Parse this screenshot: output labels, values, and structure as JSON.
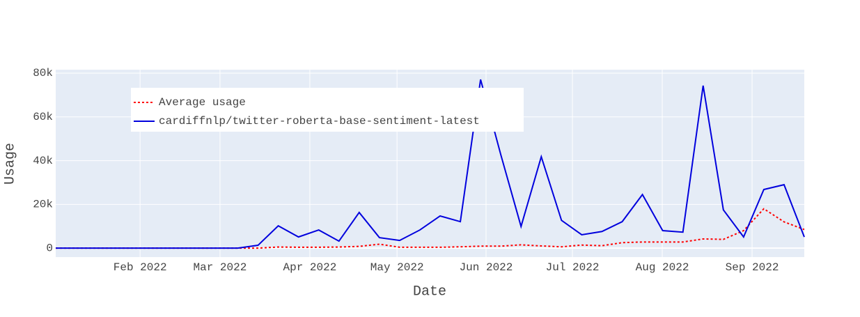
{
  "chart_data": {
    "type": "line",
    "xlabel": "Date",
    "ylabel": "Usage",
    "categories": [
      null,
      null,
      null,
      null,
      null,
      null,
      null,
      null,
      null,
      null,
      null,
      null,
      null,
      null,
      null,
      null,
      null,
      null,
      null,
      null,
      null,
      null,
      null,
      null,
      null,
      null,
      null,
      null,
      null,
      null,
      null,
      null,
      null,
      null,
      null,
      null,
      null,
      null
    ],
    "xlim": [
      0,
      37
    ],
    "xticks": [
      {
        "value": 4.17,
        "label": "Feb 2022"
      },
      {
        "value": 8.12,
        "label": "Mar 2022"
      },
      {
        "value": 12.56,
        "label": "Apr 2022"
      },
      {
        "value": 16.87,
        "label": "May 2022"
      },
      {
        "value": 21.27,
        "label": "Jun 2022"
      },
      {
        "value": 25.54,
        "label": "Jul 2022"
      },
      {
        "value": 29.98,
        "label": "Aug 2022"
      },
      {
        "value": 34.42,
        "label": "Sep 2022"
      }
    ],
    "ylim": [
      -4100,
      81600
    ],
    "yticks": [
      {
        "value": 0,
        "label": "0"
      },
      {
        "value": 20000,
        "label": "20k"
      },
      {
        "value": 40000,
        "label": "40k"
      },
      {
        "value": 60000,
        "label": "60k"
      },
      {
        "value": 80000,
        "label": "80k"
      }
    ],
    "grid": true,
    "legend": "upper left",
    "series": [
      {
        "name": "Average usage",
        "color": "#ff0000",
        "dash": "dot",
        "values": [
          0,
          0,
          0,
          0,
          0,
          0,
          0,
          0,
          0,
          0,
          0,
          500,
          400,
          400,
          500,
          800,
          1800,
          400,
          400,
          400,
          600,
          900,
          900,
          1500,
          1000,
          600,
          1400,
          1100,
          2500,
          2800,
          2800,
          2800,
          4200,
          4000,
          8000,
          18000,
          12000,
          8500
        ]
      },
      {
        "name": "cardiffnlp/twitter-roberta-base-sentiment-latest",
        "color": "#0000dd",
        "dash": "solid",
        "values": [
          0,
          0,
          0,
          0,
          0,
          0,
          0,
          0,
          0,
          0,
          1300,
          10200,
          5100,
          8300,
          3200,
          16300,
          4800,
          3500,
          8300,
          14700,
          12100,
          77100,
          42700,
          9900,
          41800,
          12700,
          6100,
          7600,
          12100,
          24500,
          8000,
          7300,
          74300,
          17500,
          5100,
          26800,
          29000,
          5100
        ]
      }
    ]
  }
}
